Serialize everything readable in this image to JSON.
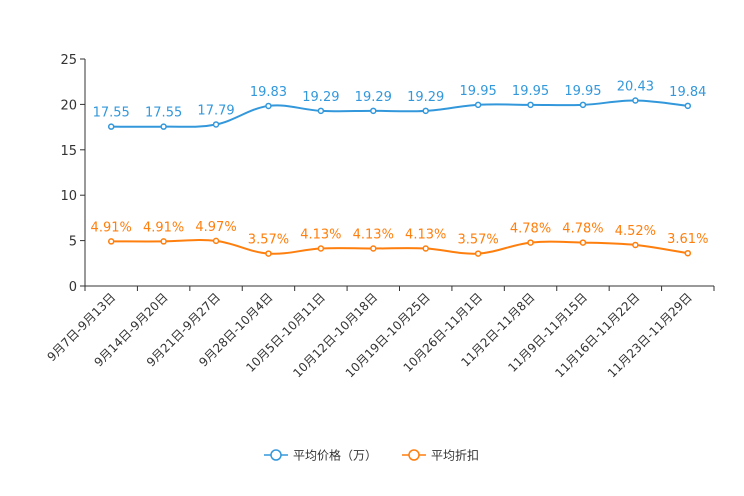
{
  "chart_data": {
    "type": "line",
    "title": "",
    "xlabel": "",
    "ylabel": "",
    "ylim": [
      0,
      25
    ],
    "yticks": [
      0,
      5,
      10,
      15,
      20,
      25
    ],
    "categories": [
      "9月7日-9月13日",
      "9月14日-9月20日",
      "9月21日-9月27日",
      "9月28日-10月4日",
      "10月5日-10月11日",
      "10月12日-10月18日",
      "10月19日-10月25日",
      "10月26日-11月1日",
      "11月2日-11月8日",
      "11月9日-11月15日",
      "11月16日-11月22日",
      "11月23日-11月29日"
    ],
    "series": [
      {
        "name": "平均价格（万）",
        "color": "#3398DB",
        "values": [
          17.55,
          17.55,
          17.79,
          19.83,
          19.29,
          19.29,
          19.29,
          19.95,
          19.95,
          19.95,
          20.43,
          19.84
        ],
        "labels": [
          "17.55",
          "17.55",
          "17.79",
          "19.83",
          "19.29",
          "19.29",
          "19.29",
          "19.95",
          "19.95",
          "19.95",
          "20.43",
          "19.84"
        ]
      },
      {
        "name": "平均折扣",
        "color": "#FF7F0E",
        "values": [
          4.91,
          4.91,
          4.97,
          3.57,
          4.13,
          4.13,
          4.13,
          3.57,
          4.78,
          4.78,
          4.52,
          3.61
        ],
        "labels": [
          "4.91%",
          "4.91%",
          "4.97%",
          "3.57%",
          "4.13%",
          "4.13%",
          "4.13%",
          "3.57%",
          "4.78%",
          "4.78%",
          "4.52%",
          "3.61%"
        ]
      }
    ],
    "legend_position": "bottom-center"
  }
}
